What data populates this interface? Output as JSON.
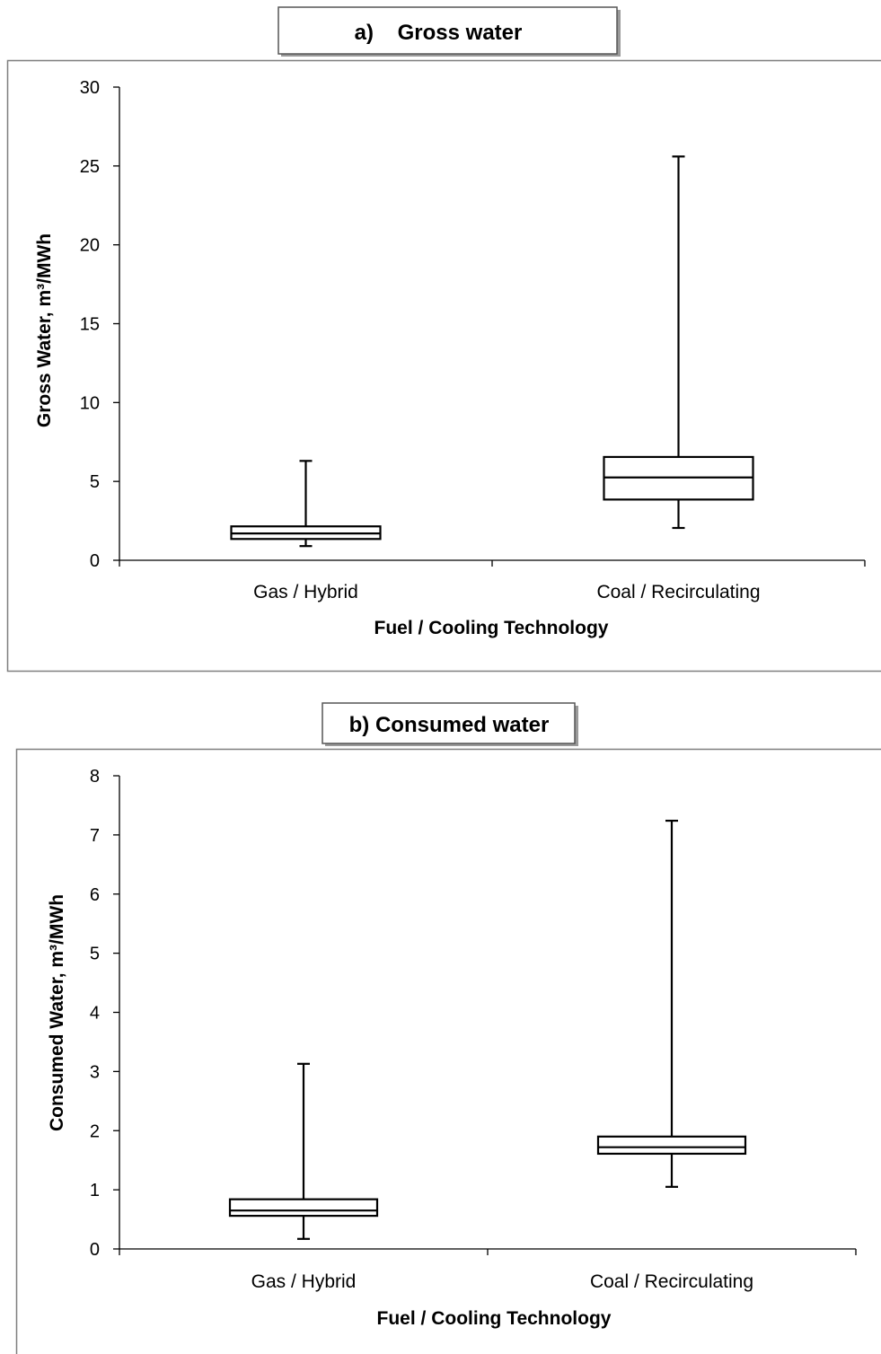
{
  "chart_data": [
    {
      "type": "box",
      "title": "a)    Gross water",
      "xlabel": "Fuel / Cooling Technology",
      "ylabel": "Gross Water, m³/MWh",
      "ylim": [
        0,
        30
      ],
      "yticks": [
        "0",
        "5",
        "10",
        "15",
        "20",
        "25",
        "30"
      ],
      "grid": false,
      "categories": [
        "Gas / Hybrid",
        "Coal / Recirculating"
      ],
      "boxes": [
        {
          "category": "Gas / Hybrid",
          "min": 0.9,
          "q1": 1.35,
          "median": 1.7,
          "q3": 2.15,
          "max": 6.3
        },
        {
          "category": "Coal / Recirculating",
          "min": 2.05,
          "q1": 3.85,
          "median": 5.25,
          "q3": 6.55,
          "max": 25.6
        }
      ]
    },
    {
      "type": "box",
      "title": "b) Consumed water",
      "xlabel": "Fuel / Cooling Technology",
      "ylabel": "Consumed Water, m³/MWh",
      "ylim": [
        0,
        8
      ],
      "yticks": [
        "0",
        "1",
        "2",
        "3",
        "4",
        "5",
        "6",
        "7",
        "8"
      ],
      "grid": false,
      "categories": [
        "Gas / Hybrid",
        "Coal / Recirculating"
      ],
      "boxes": [
        {
          "category": "Gas / Hybrid",
          "min": 0.17,
          "q1": 0.56,
          "median": 0.65,
          "q3": 0.84,
          "max": 3.13
        },
        {
          "category": "Coal / Recirculating",
          "min": 1.05,
          "q1": 1.61,
          "median": 1.72,
          "q3": 1.9,
          "max": 7.24
        }
      ]
    }
  ]
}
